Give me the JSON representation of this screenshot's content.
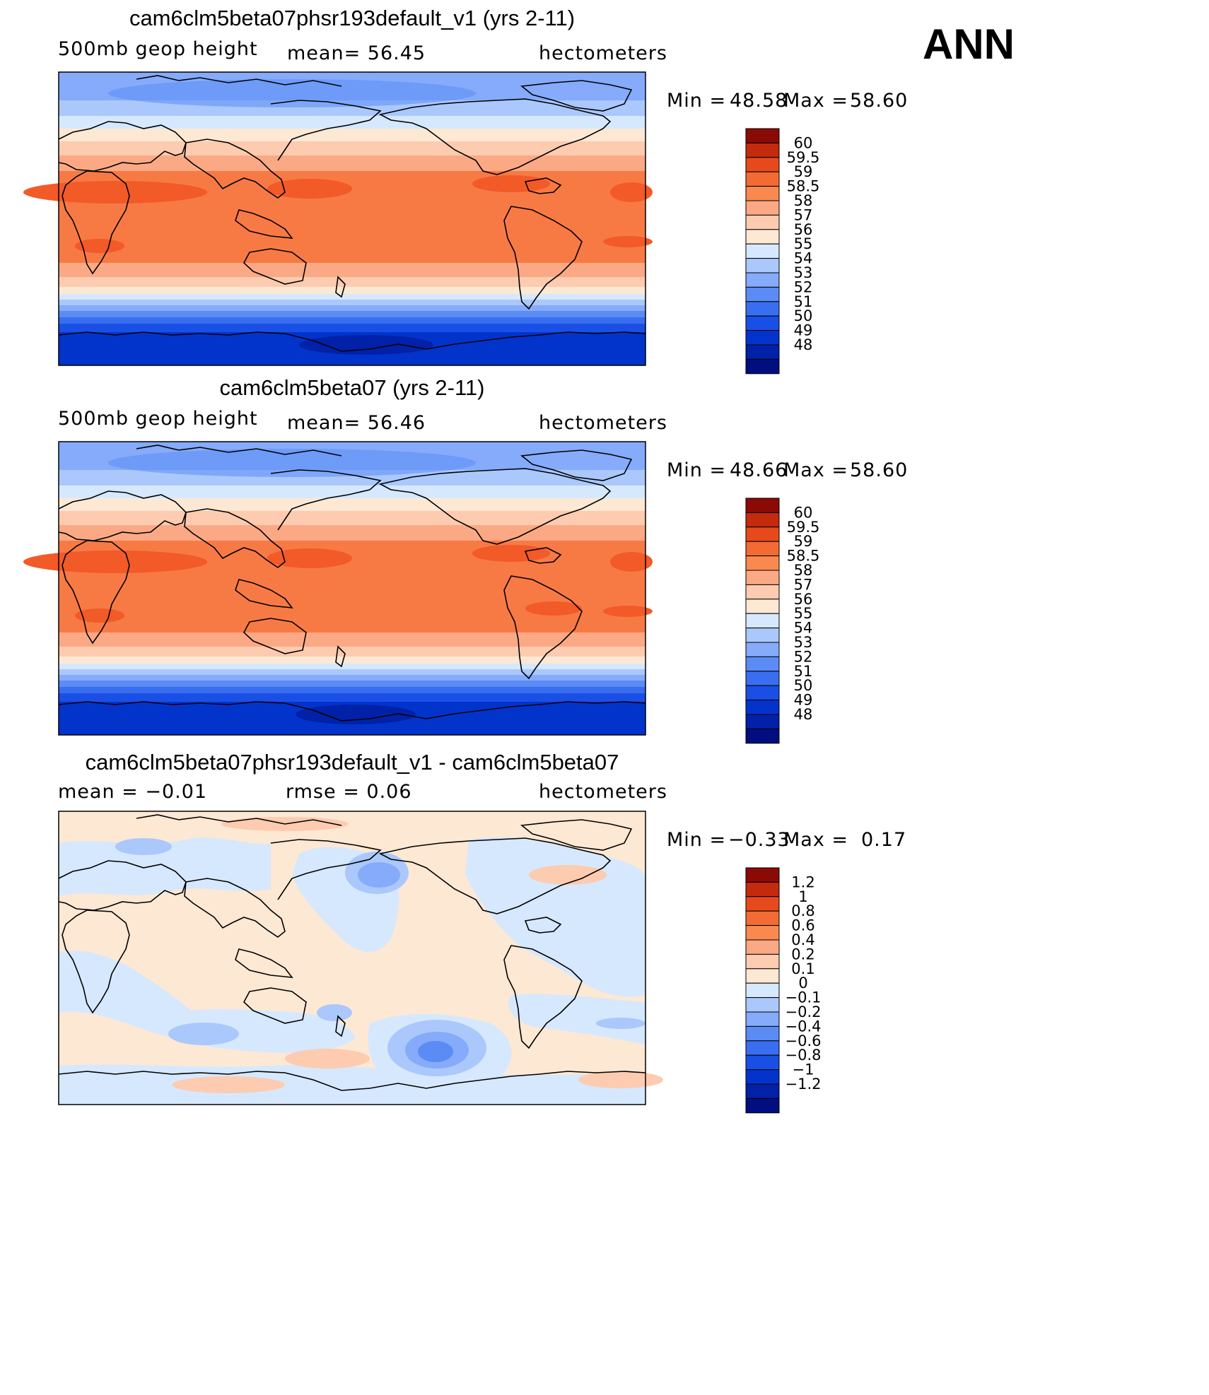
{
  "season": "ANN",
  "panels": [
    {
      "id": "p1",
      "title": "cam6clm5beta07phsr193default_v1 (yrs 2-11)",
      "variable": "500mb geop height",
      "stat": "mean=   56.45",
      "units": "hectometers",
      "min_label": "Min  =",
      "min_value": "48.58",
      "max_label": "Max  =",
      "max_value": "58.60"
    },
    {
      "id": "p2",
      "title": "cam6clm5beta07 (yrs 2-11)",
      "variable": "500mb geop height",
      "stat": "mean=   56.46",
      "units": "hectometers",
      "min_label": "Min  =",
      "min_value": "48.66",
      "max_label": "Max  =",
      "max_value": "58.60"
    },
    {
      "id": "p3",
      "title": "cam6clm5beta07phsr193default_v1 - cam6clm5beta07",
      "variable": "mean  =   −0.01",
      "stat": "rmse  =    0.06",
      "units": "hectometers",
      "min_label": "Min  =",
      "min_value": "−0.33",
      "max_label": "Max  =",
      "max_value": "0.17"
    }
  ],
  "colors": {
    "abs_scale": [
      "#000e80",
      "#0021a8",
      "#0234cc",
      "#1a4fe6",
      "#3a6ef0",
      "#5b8cf5",
      "#85abfa",
      "#aac8fc",
      "#d6e8fd",
      "#fde8d4",
      "#fdcbb0",
      "#fba985",
      "#f9894f",
      "#f26b33",
      "#e64a1c",
      "#c42a0c",
      "#8b0a05"
    ],
    "diff_scale": [
      "#000e80",
      "#0021a8",
      "#0234cc",
      "#1a4fe6",
      "#3a6ef0",
      "#5b8cf5",
      "#85abfa",
      "#aac8fc",
      "#d6e8fd",
      "#fde8d4",
      "#fdcbb0",
      "#fba985",
      "#f9894f",
      "#f26b33",
      "#e64a1c",
      "#c42a0c",
      "#8b0a05"
    ]
  },
  "chart_data": [
    {
      "type": "heatmap",
      "title": "cam6clm5beta07phsr193default_v1 (yrs 2-11)",
      "variable": "500mb geop height",
      "units": "hectometers",
      "mean": 56.45,
      "min": 48.58,
      "max": 58.6,
      "lon_range": [
        0,
        360
      ],
      "lat_range": [
        -90,
        90
      ],
      "colorbar_levels": [
        "60",
        "59.5",
        "59",
        "58.5",
        "58",
        "57",
        "56",
        "55",
        "54",
        "53",
        "52",
        "51",
        "50",
        "49",
        "48"
      ],
      "zonal_profile_lat": [
        90,
        70,
        50,
        35,
        20,
        0,
        -20,
        -35,
        -45,
        -55,
        -65,
        -80,
        -90
      ],
      "zonal_profile_value": [
        52.5,
        53.0,
        55.2,
        57.2,
        58.2,
        58.3,
        58.1,
        56.5,
        54.5,
        51.5,
        50.0,
        49.0,
        48.6
      ]
    },
    {
      "type": "heatmap",
      "title": "cam6clm5beta07 (yrs 2-11)",
      "variable": "500mb geop height",
      "units": "hectometers",
      "mean": 56.46,
      "min": 48.66,
      "max": 58.6,
      "lon_range": [
        0,
        360
      ],
      "lat_range": [
        -90,
        90
      ],
      "colorbar_levels": [
        "60",
        "59.5",
        "59",
        "58.5",
        "58",
        "57",
        "56",
        "55",
        "54",
        "53",
        "52",
        "51",
        "50",
        "49",
        "48"
      ],
      "zonal_profile_lat": [
        90,
        70,
        50,
        35,
        20,
        0,
        -20,
        -35,
        -45,
        -55,
        -65,
        -80,
        -90
      ],
      "zonal_profile_value": [
        52.5,
        53.0,
        55.2,
        57.2,
        58.2,
        58.3,
        58.1,
        56.5,
        54.5,
        51.5,
        50.0,
        49.0,
        48.7
      ]
    },
    {
      "type": "heatmap",
      "title": "cam6clm5beta07phsr193default_v1 - cam6clm5beta07",
      "units": "hectometers",
      "mean": -0.01,
      "rmse": 0.06,
      "min": -0.33,
      "max": 0.17,
      "lon_range": [
        0,
        360
      ],
      "lat_range": [
        -90,
        90
      ],
      "colorbar_levels": [
        "1.2",
        "1",
        "0.8",
        "0.6",
        "0.4",
        "0.2",
        "0.1",
        "0",
        "−0.1",
        "−0.2",
        "−0.4",
        "−0.6",
        "−0.8",
        "−1",
        "−1.2"
      ]
    }
  ]
}
